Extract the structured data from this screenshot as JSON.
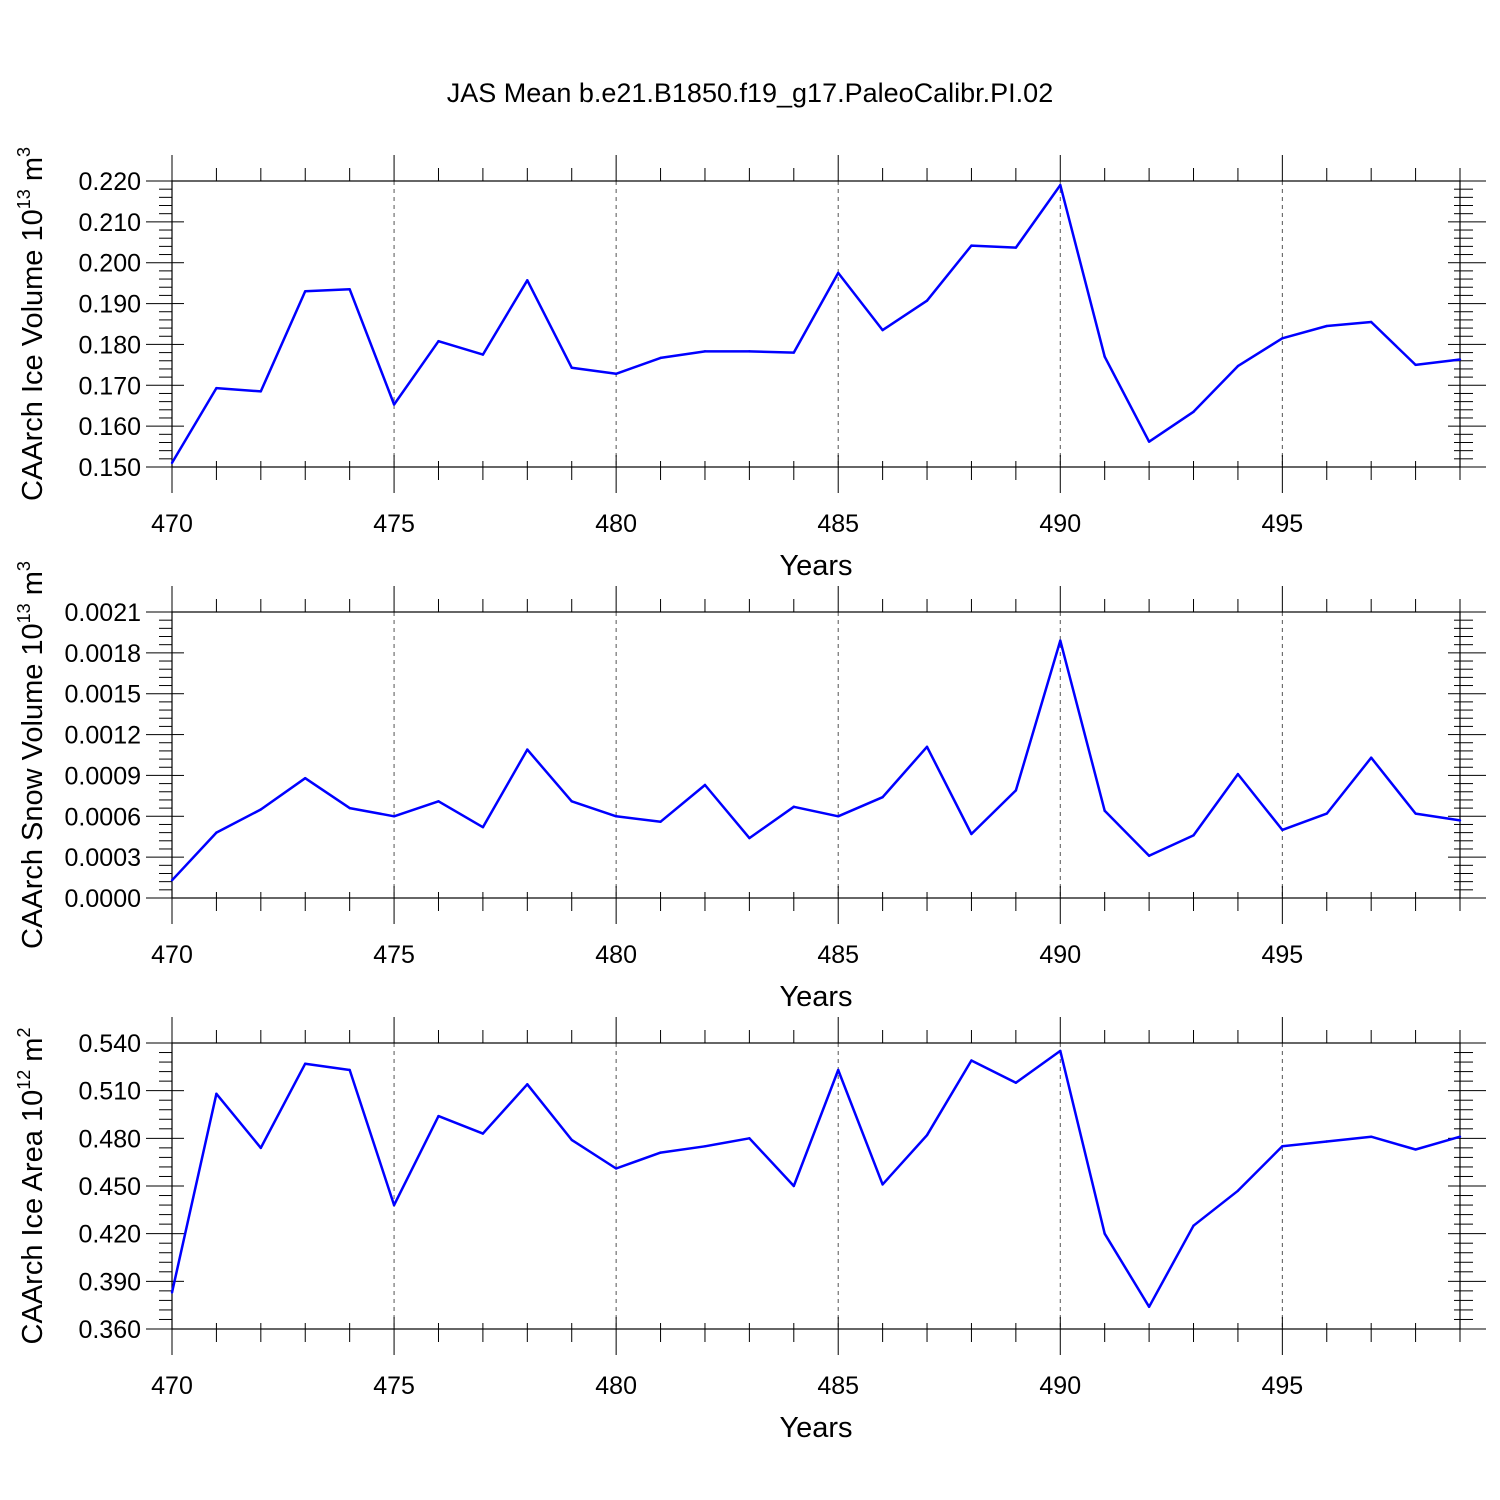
{
  "chart_data": [
    {
      "type": "line",
      "title": "JAS Mean b.e21.B1850.f19_g17.PaleoCalibr.PI.02",
      "ylabel_base": "CAArch Ice Volume 10",
      "ylabel_exp": "13",
      "ylabel_unit": " m",
      "ylabel_unit_exp": "3",
      "xlabel": "Years",
      "xlim": [
        470,
        499
      ],
      "ylim": [
        0.15,
        0.22
      ],
      "x_ticks": [
        470,
        475,
        480,
        485,
        490,
        495
      ],
      "x_tick_labels": [
        "470",
        "475",
        "480",
        "485",
        "490",
        "495"
      ],
      "y_ticks": [
        0.15,
        0.16,
        0.17,
        0.18,
        0.19,
        0.2,
        0.21,
        0.22
      ],
      "y_tick_labels": [
        "0.150",
        "0.160",
        "0.170",
        "0.180",
        "0.190",
        "0.200",
        "0.210",
        "0.220"
      ],
      "x": [
        470,
        471,
        472,
        473,
        474,
        475,
        476,
        477,
        478,
        479,
        480,
        481,
        482,
        483,
        484,
        485,
        486,
        487,
        488,
        489,
        490,
        491,
        492,
        493,
        494,
        495,
        496,
        497,
        498,
        499
      ],
      "values": [
        0.151,
        0.1693,
        0.1685,
        0.193,
        0.1935,
        0.1653,
        0.1808,
        0.1775,
        0.1957,
        0.1743,
        0.1728,
        0.1767,
        0.1783,
        0.1783,
        0.178,
        0.1975,
        0.1835,
        0.1907,
        0.2042,
        0.2037,
        0.219,
        0.177,
        0.1562,
        0.1635,
        0.1747,
        0.1815,
        0.1845,
        0.1855,
        0.175,
        0.1763
      ],
      "line_color": "#0000ff"
    },
    {
      "type": "line",
      "ylabel_base": "CAArch Snow Volume 10",
      "ylabel_exp": "13",
      "ylabel_unit": " m",
      "ylabel_unit_exp": "3",
      "xlabel": "Years",
      "xlim": [
        470,
        499
      ],
      "ylim": [
        0.0,
        0.0021
      ],
      "x_ticks": [
        470,
        475,
        480,
        485,
        490,
        495
      ],
      "x_tick_labels": [
        "470",
        "475",
        "480",
        "485",
        "490",
        "495"
      ],
      "y_ticks": [
        0.0,
        0.0003,
        0.0006,
        0.0009,
        0.0012,
        0.0015,
        0.0018,
        0.0021
      ],
      "y_tick_labels": [
        "0.0000",
        "0.0003",
        "0.0006",
        "0.0009",
        "0.0012",
        "0.0015",
        "0.0018",
        "0.0021"
      ],
      "x": [
        470,
        471,
        472,
        473,
        474,
        475,
        476,
        477,
        478,
        479,
        480,
        481,
        482,
        483,
        484,
        485,
        486,
        487,
        488,
        489,
        490,
        491,
        492,
        493,
        494,
        495,
        496,
        497,
        498,
        499
      ],
      "values": [
        0.00013,
        0.00048,
        0.00065,
        0.00088,
        0.00066,
        0.0006,
        0.00071,
        0.00052,
        0.00109,
        0.00071,
        0.0006,
        0.00056,
        0.00083,
        0.00044,
        0.00067,
        0.0006,
        0.00074,
        0.00111,
        0.00047,
        0.00079,
        0.00189,
        0.00064,
        0.00031,
        0.00046,
        0.00091,
        0.0005,
        0.00062,
        0.00103,
        0.00062,
        0.00057
      ],
      "line_color": "#0000ff"
    },
    {
      "type": "line",
      "ylabel_base": "CAArch Ice Area 10",
      "ylabel_exp": "12",
      "ylabel_unit": " m",
      "ylabel_unit_exp": "2",
      "xlabel": "Years",
      "xlim": [
        470,
        499
      ],
      "ylim": [
        0.36,
        0.54
      ],
      "x_ticks": [
        470,
        475,
        480,
        485,
        490,
        495
      ],
      "x_tick_labels": [
        "470",
        "475",
        "480",
        "485",
        "490",
        "495"
      ],
      "y_ticks": [
        0.36,
        0.39,
        0.42,
        0.45,
        0.48,
        0.51,
        0.54
      ],
      "y_tick_labels": [
        "0.360",
        "0.390",
        "0.420",
        "0.450",
        "0.480",
        "0.510",
        "0.540"
      ],
      "x": [
        470,
        471,
        472,
        473,
        474,
        475,
        476,
        477,
        478,
        479,
        480,
        481,
        482,
        483,
        484,
        485,
        486,
        487,
        488,
        489,
        490,
        491,
        492,
        493,
        494,
        495,
        496,
        497,
        498,
        499
      ],
      "values": [
        0.383,
        0.508,
        0.474,
        0.527,
        0.523,
        0.438,
        0.494,
        0.483,
        0.514,
        0.479,
        0.461,
        0.471,
        0.475,
        0.48,
        0.45,
        0.523,
        0.451,
        0.482,
        0.529,
        0.515,
        0.535,
        0.42,
        0.374,
        0.425,
        0.447,
        0.475,
        0.478,
        0.481,
        0.473,
        0.481
      ],
      "line_color": "#0000ff"
    }
  ]
}
